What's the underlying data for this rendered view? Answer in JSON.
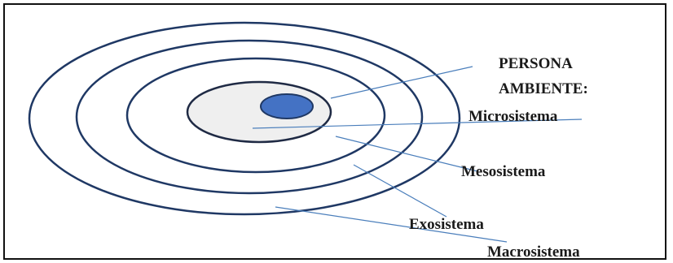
{
  "diagram": {
    "labels": {
      "persona": "PERSONA",
      "ambiente": "AMBIENTE:",
      "microsistema": "Microsistema",
      "mesosistema": "Mesosistema",
      "exosistema": "Exosistema",
      "macrosistema": "Macrosistema"
    },
    "colors": {
      "ring_stroke": "#1f3864",
      "connector": "#4a7ebb",
      "core_fill": "#4472c4",
      "inner_fill": "#efefef",
      "border": "#111111"
    }
  }
}
